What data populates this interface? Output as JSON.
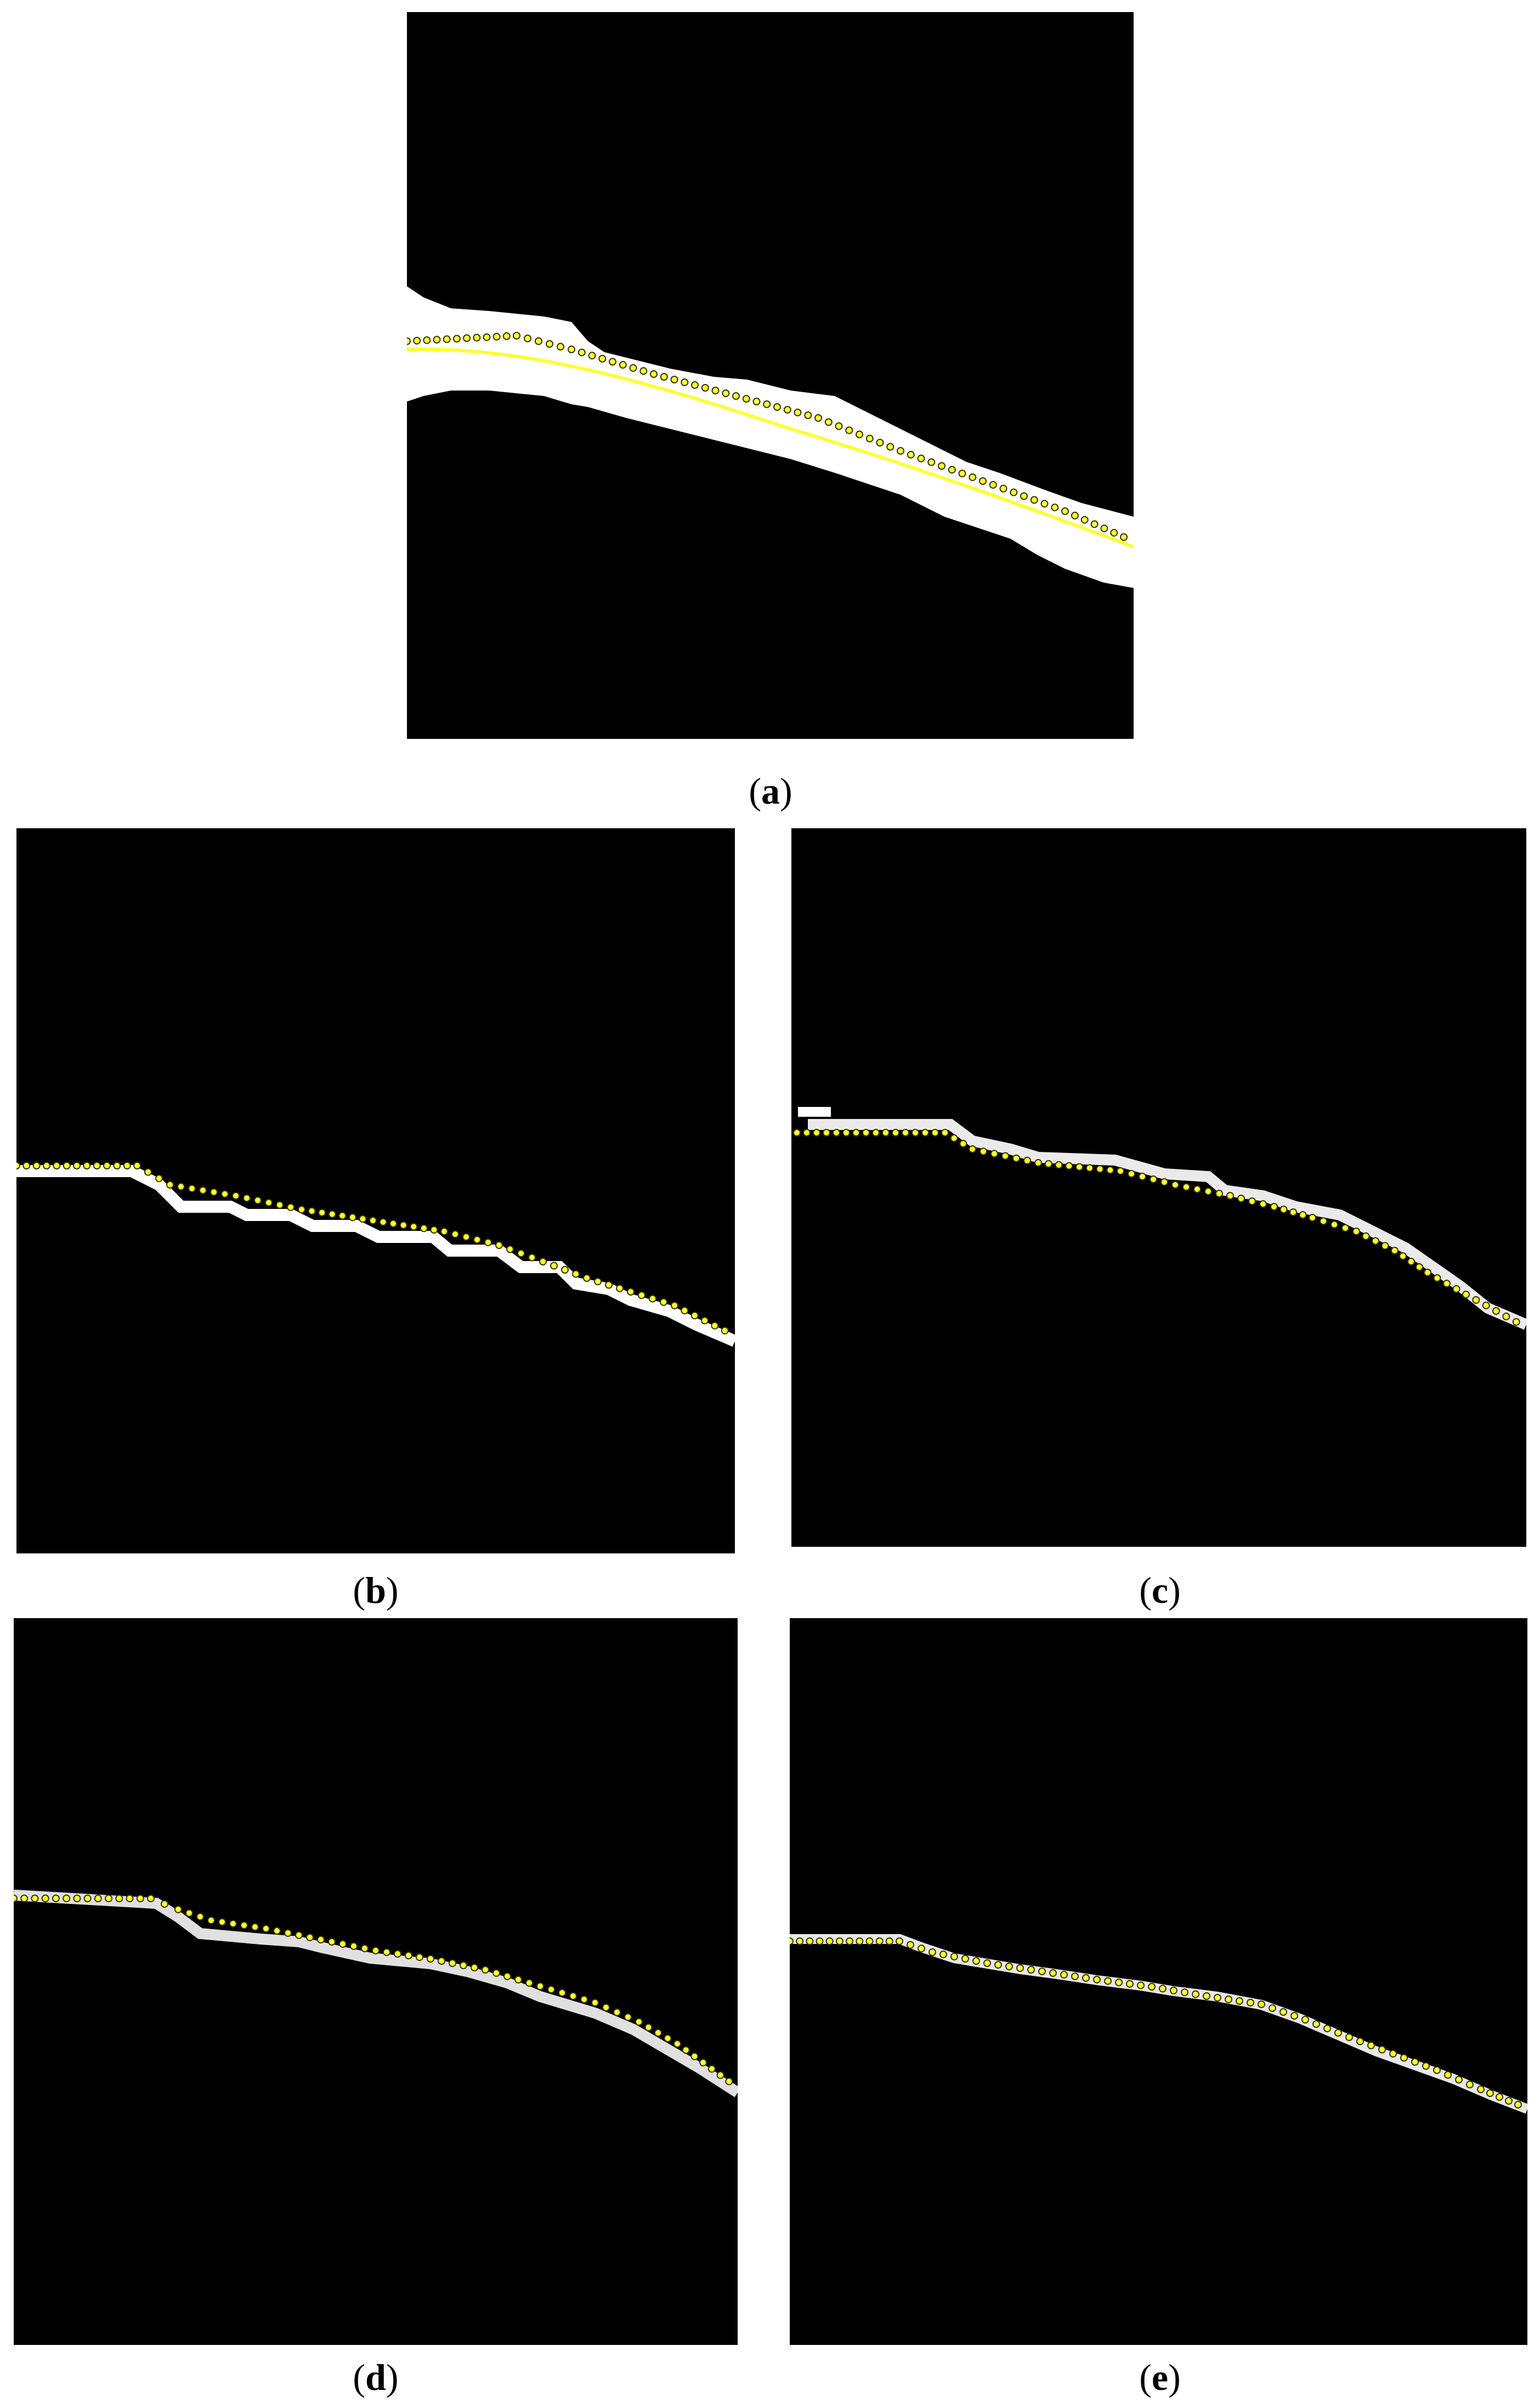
{
  "figure": {
    "panels": [
      {
        "id": "a",
        "caption_open": "(",
        "caption_letter": "a",
        "caption_close": ")"
      },
      {
        "id": "b",
        "caption_open": "(",
        "caption_letter": "b",
        "caption_close": ")"
      },
      {
        "id": "c",
        "caption_open": "(",
        "caption_letter": "c",
        "caption_close": ")"
      },
      {
        "id": "d",
        "caption_open": "(",
        "caption_letter": "d",
        "caption_close": ")"
      },
      {
        "id": "e",
        "caption_open": "(",
        "caption_letter": "e",
        "caption_close": ")"
      }
    ]
  },
  "colors": {
    "background": "#000000",
    "line": "#ffffff",
    "marker_fill": "#ffff33",
    "marker_stroke": "#333300"
  }
}
